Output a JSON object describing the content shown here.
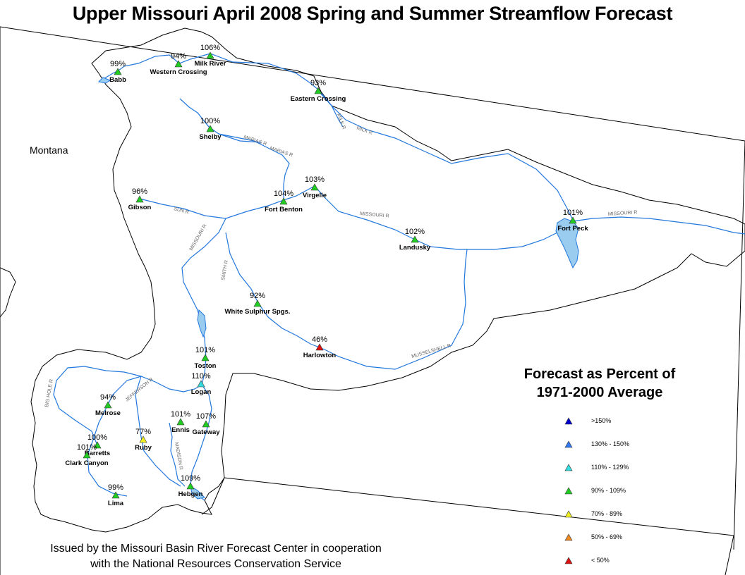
{
  "title": "Upper Missouri April 2008 Spring and Summer Streamflow Forecast",
  "state_label": "Montana",
  "legend": {
    "title_line1": "Forecast as Percent of",
    "title_line2": "1971-2000 Average",
    "items": [
      {
        "label": ">150%",
        "color": "#0000cc"
      },
      {
        "label": "130% - 150%",
        "color": "#3377ee"
      },
      {
        "label": "110% - 129%",
        "color": "#33dddd"
      },
      {
        "label": "90% - 109%",
        "color": "#22cc22"
      },
      {
        "label": "70% - 89%",
        "color": "#eeee22"
      },
      {
        "label": "50% - 69%",
        "color": "#ee8822"
      },
      {
        "label": "< 50%",
        "color": "#dd1111"
      }
    ]
  },
  "footer": {
    "line1": "Issued by the Missouri Basin River Forecast Center in cooperation",
    "line2": "with the National Resources Conservation Service"
  },
  "stations": [
    {
      "name": "Babb",
      "pct": "99%",
      "color": "#22cc22"
    },
    {
      "name": "Western Crossing",
      "pct": "94%",
      "color": "#22cc22"
    },
    {
      "name": "Milk River",
      "pct": "106%",
      "color": "#22cc22"
    },
    {
      "name": "Eastern Crossing",
      "pct": "93%",
      "color": "#22cc22"
    },
    {
      "name": "Shelby",
      "pct": "100%",
      "color": "#22cc22"
    },
    {
      "name": "Gibson",
      "pct": "96%",
      "color": "#22cc22"
    },
    {
      "name": "Fort Benton",
      "pct": "104%",
      "color": "#22cc22"
    },
    {
      "name": "Virgelle",
      "pct": "103%",
      "color": "#22cc22"
    },
    {
      "name": "Landusky",
      "pct": "102%",
      "color": "#22cc22"
    },
    {
      "name": "Fort Peck",
      "pct": "101%",
      "color": "#22cc22"
    },
    {
      "name": "White Sulphur Spgs.",
      "pct": "92%",
      "color": "#22cc22"
    },
    {
      "name": "Harlowton",
      "pct": "46%",
      "color": "#dd1111"
    },
    {
      "name": "Toston",
      "pct": "101%",
      "color": "#22cc22"
    },
    {
      "name": "Logan",
      "pct": "110%",
      "color": "#33dddd"
    },
    {
      "name": "Melrose",
      "pct": "94%",
      "color": "#22cc22"
    },
    {
      "name": "Ennis",
      "pct": "101%",
      "color": "#22cc22"
    },
    {
      "name": "Gateway",
      "pct": "107%",
      "color": "#22cc22"
    },
    {
      "name": "Ruby",
      "pct": "77%",
      "color": "#eeee22"
    },
    {
      "name": "Barretts",
      "pct": "100%",
      "color": "#22cc22"
    },
    {
      "name": "Clark Canyon",
      "pct": "101%",
      "color": "#22cc22"
    },
    {
      "name": "Lima",
      "pct": "99%",
      "color": "#22cc22"
    },
    {
      "name": "Hebgen",
      "pct": "109%",
      "color": "#22cc22"
    }
  ],
  "rivers": [
    "MILK R",
    "MILK R",
    "MARIAS R",
    "MARIAS R",
    "SUN R",
    "MISSOURI R",
    "MISSOURI R",
    "MISSOURI R",
    "SMITH R",
    "MUSSELSHELL R",
    "JEFFERSON R",
    "BIG HOLE R",
    "MADISON R"
  ]
}
